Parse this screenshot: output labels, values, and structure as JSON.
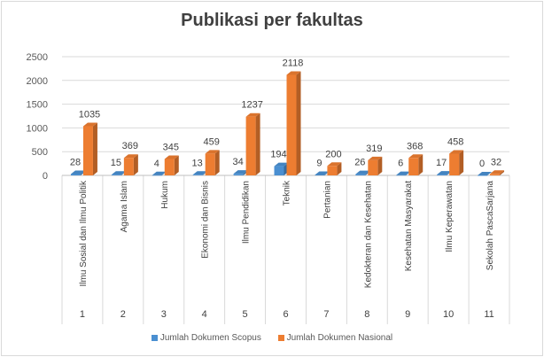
{
  "chart_data": {
    "type": "bar",
    "title": "Publikasi  per fakultas",
    "categories": [
      "Ilmu Sosial dan Ilmu Politik",
      "Agama Islam",
      "Hukum",
      "Ekonomi dan Bisnis",
      "Ilmu Pendidikan",
      "Teknik",
      "Pertanian",
      "Kedokteran dan Kesehatan",
      "Kesehatan Masyarakat",
      "Ilmu Keperawatan",
      "Sekolah PascaSarjana"
    ],
    "category_numbers": [
      "1",
      "2",
      "3",
      "4",
      "5",
      "6",
      "7",
      "8",
      "9",
      "10",
      "11"
    ],
    "series": [
      {
        "name": "Jumlah Dokumen Scopus",
        "color": "#4a8fd1",
        "values": [
          28,
          15,
          4,
          13,
          34,
          194,
          9,
          26,
          6,
          17,
          0
        ]
      },
      {
        "name": "Jumlah Dokumen Nasional",
        "color": "#ed7d31",
        "values": [
          1035,
          369,
          345,
          459,
          1237,
          2118,
          200,
          319,
          368,
          458,
          32
        ]
      }
    ],
    "ylim": [
      0,
      2500
    ],
    "yticks": [
      0,
      500,
      1000,
      1500,
      2000,
      2500
    ],
    "grid": true,
    "legend_position": "bottom"
  }
}
